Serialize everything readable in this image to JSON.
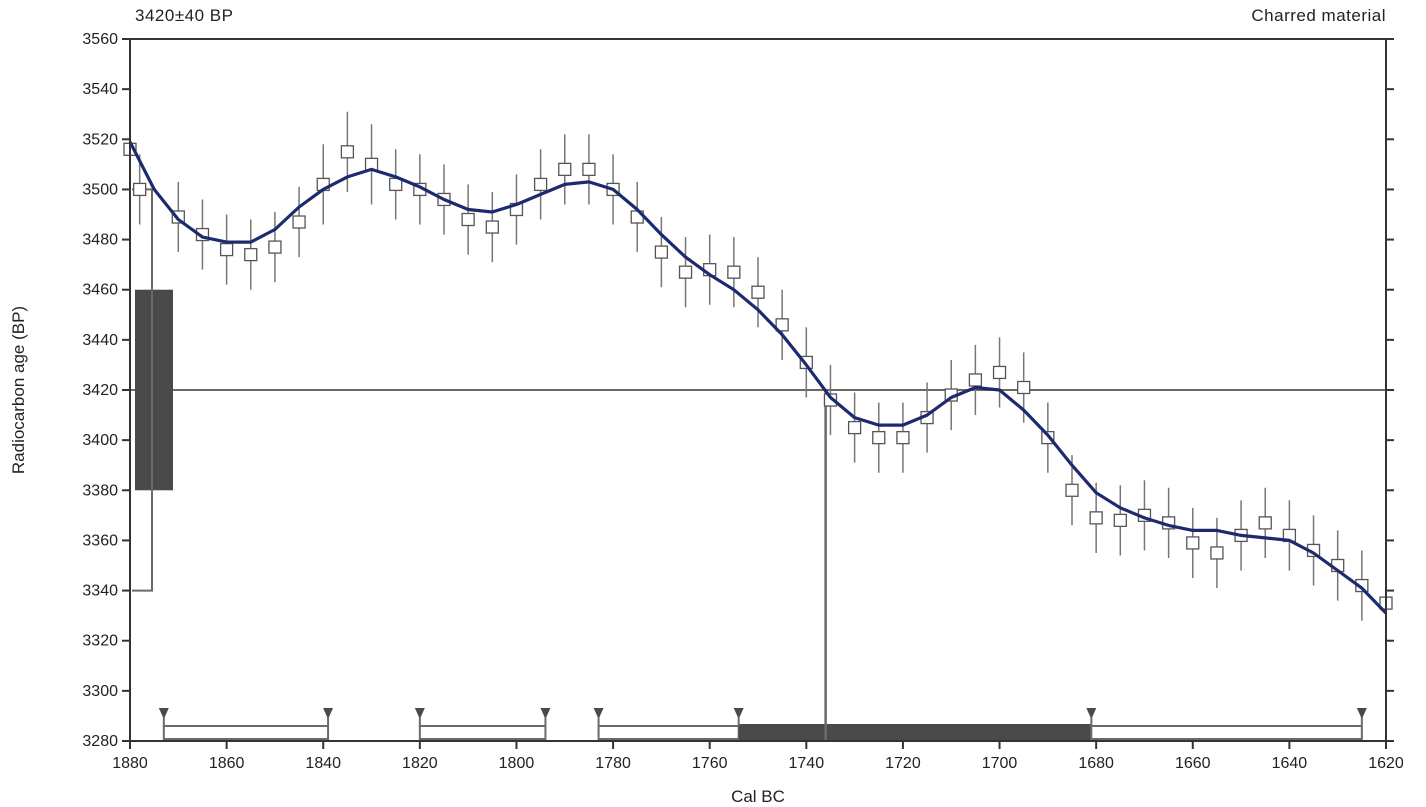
{
  "chart_data": {
    "type": "line",
    "title_left": "3420±40 BP",
    "title_right": "Charred material",
    "xlabel": "Cal BC",
    "ylabel": "Radiocarbon age (BP)",
    "x_reversed": true,
    "xlim": [
      1880,
      1620
    ],
    "ylim": [
      3280,
      3560
    ],
    "x_ticks": [
      1880,
      1860,
      1840,
      1820,
      1800,
      1780,
      1760,
      1740,
      1720,
      1700,
      1680,
      1660,
      1640,
      1620
    ],
    "y_ticks": [
      3280,
      3300,
      3320,
      3340,
      3360,
      3380,
      3400,
      3420,
      3440,
      3460,
      3480,
      3500,
      3520,
      3540,
      3560
    ],
    "grid": false,
    "colors": {
      "curve": "#1e2a6e",
      "gray": "#6a6a6a",
      "dark": "#4a4a4a"
    },
    "calibration_curve": {
      "x": [
        1880,
        1875,
        1870,
        1865,
        1860,
        1855,
        1850,
        1845,
        1840,
        1835,
        1830,
        1825,
        1820,
        1815,
        1810,
        1805,
        1800,
        1795,
        1790,
        1785,
        1780,
        1775,
        1770,
        1765,
        1760,
        1755,
        1750,
        1745,
        1740,
        1735,
        1730,
        1725,
        1720,
        1715,
        1710,
        1705,
        1700,
        1695,
        1690,
        1685,
        1680,
        1675,
        1670,
        1665,
        1660,
        1655,
        1650,
        1645,
        1640,
        1635,
        1630,
        1625,
        1620
      ],
      "y": [
        3519,
        3500,
        3488,
        3481,
        3479,
        3479,
        3484,
        3493,
        3500,
        3505,
        3508,
        3505,
        3501,
        3496,
        3492,
        3491,
        3494,
        3498,
        3502,
        3503,
        3500,
        3492,
        3482,
        3473,
        3466,
        3460,
        3452,
        3442,
        3430,
        3417,
        3409,
        3406,
        3406,
        3410,
        3417,
        3421,
        3420,
        3412,
        3402,
        3390,
        3379,
        3373,
        3369,
        3366,
        3364,
        3364,
        3362,
        3361,
        3360,
        3355,
        3348,
        3341,
        3331
      ]
    },
    "data_points": {
      "x": [
        1880,
        1878,
        1870,
        1865,
        1860,
        1855,
        1850,
        1845,
        1840,
        1835,
        1830,
        1825,
        1820,
        1815,
        1810,
        1805,
        1800,
        1795,
        1790,
        1785,
        1780,
        1775,
        1770,
        1765,
        1760,
        1755,
        1750,
        1745,
        1740,
        1735,
        1730,
        1725,
        1720,
        1715,
        1710,
        1705,
        1700,
        1695,
        1690,
        1685,
        1680,
        1675,
        1670,
        1665,
        1660,
        1655,
        1650,
        1645,
        1640,
        1635,
        1630,
        1625,
        1620
      ],
      "y": [
        3516,
        3500,
        3489,
        3482,
        3476,
        3474,
        3477,
        3487,
        3502,
        3515,
        3510,
        3502,
        3500,
        3496,
        3488,
        3485,
        3492,
        3502,
        3508,
        3508,
        3500,
        3489,
        3475,
        3467,
        3468,
        3467,
        3459,
        3446,
        3431,
        3416,
        3405,
        3401,
        3401,
        3409,
        3418,
        3424,
        3427,
        3421,
        3401,
        3380,
        3369,
        3368,
        3370,
        3367,
        3359,
        3355,
        3362,
        3367,
        3362,
        3356,
        3350,
        3342,
        3335
      ],
      "err": [
        14,
        14,
        14,
        14,
        14,
        14,
        14,
        14,
        16,
        16,
        16,
        14,
        14,
        14,
        14,
        14,
        14,
        14,
        14,
        14,
        14,
        14,
        14,
        14,
        14,
        14,
        14,
        14,
        14,
        14,
        14,
        14,
        14,
        14,
        14,
        14,
        14,
        14,
        14,
        14,
        14,
        14,
        14,
        14,
        14,
        14,
        14,
        14,
        14,
        14,
        14,
        14,
        14
      ]
    },
    "measured_age": {
      "value": 3420,
      "error": 40,
      "box_range": [
        3380,
        3460
      ]
    },
    "age_distribution_range": [
      3340,
      3500
    ],
    "calibrated_median": 1736,
    "calibrated_ranges": [
      {
        "from": 1873,
        "to": 1839
      },
      {
        "from": 1820,
        "to": 1794
      },
      {
        "from": 1783,
        "to": 1754
      },
      {
        "from": 1754,
        "to": 1681,
        "highlight": true
      },
      {
        "from": 1681,
        "to": 1625
      }
    ],
    "range_markers": [
      1873,
      1839,
      1820,
      1794,
      1783,
      1754,
      1681,
      1625
    ]
  }
}
